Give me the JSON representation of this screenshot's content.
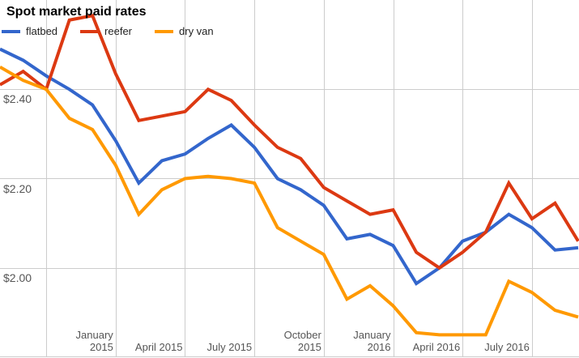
{
  "chart_data": {
    "type": "line",
    "title": "Spot market paid rates",
    "xlabel": "",
    "ylabel": "",
    "background": "#ffffff",
    "gridline_color": "#cccccc",
    "grid": true,
    "legend_position": "top-left",
    "ylim": [
      1.8,
      2.6
    ],
    "x": [
      "Aug 2014",
      "Sep 2014",
      "Oct 2014",
      "Nov 2014",
      "Dec 2014",
      "Jan 2015",
      "Feb 2015",
      "Mar 2015",
      "Apr 2015",
      "May 2015",
      "Jun 2015",
      "Jul 2015",
      "Aug 2015",
      "Sep 2015",
      "Oct 2015",
      "Nov 2015",
      "Dec 2015",
      "Jan 2016",
      "Feb 2016",
      "Mar 2016",
      "Apr 2016",
      "May 2016",
      "Jun 2016",
      "Jul 2016",
      "Aug 2016",
      "Sep 2016"
    ],
    "series": [
      {
        "name": "flatbed",
        "color": "#3366CC",
        "values": [
          2.49,
          2.465,
          2.43,
          2.4,
          2.365,
          2.285,
          2.19,
          2.24,
          2.255,
          2.29,
          2.32,
          2.27,
          2.2,
          2.175,
          2.14,
          2.065,
          2.075,
          2.05,
          1.965,
          2.0,
          2.06,
          2.08,
          2.12,
          2.09,
          2.04,
          2.045
        ]
      },
      {
        "name": "reefer",
        "color": "#DC3912",
        "values": [
          2.41,
          2.44,
          2.4,
          2.555,
          2.565,
          2.435,
          2.33,
          2.34,
          2.35,
          2.4,
          2.375,
          2.32,
          2.27,
          2.245,
          2.18,
          2.15,
          2.12,
          2.13,
          2.035,
          2.0,
          2.035,
          2.08,
          2.19,
          2.11,
          2.145,
          2.06
        ]
      },
      {
        "name": "dry van",
        "color": "#FF9900",
        "values": [
          2.45,
          2.42,
          2.4,
          2.335,
          2.31,
          2.23,
          2.12,
          2.175,
          2.2,
          2.205,
          2.2,
          2.19,
          2.09,
          2.06,
          2.03,
          1.93,
          1.96,
          1.915,
          1.855,
          1.85,
          1.85,
          1.85,
          1.97,
          1.945,
          1.905,
          1.89
        ]
      }
    ],
    "y_ticks": [
      {
        "label": "$2.40",
        "value": 2.4
      },
      {
        "label": "$2.20",
        "value": 2.2
      },
      {
        "label": "$2.00",
        "value": 2.0
      }
    ],
    "baseline_value": 1.8,
    "x_ticks": [
      {
        "index": 5,
        "lines": [
          "January",
          "2015"
        ]
      },
      {
        "index": 8,
        "lines": [
          "April 2015"
        ]
      },
      {
        "index": 11,
        "lines": [
          "July 2015"
        ]
      },
      {
        "index": 14,
        "lines": [
          "October",
          "2015"
        ]
      },
      {
        "index": 17,
        "lines": [
          "January",
          "2016"
        ]
      },
      {
        "index": 20,
        "lines": [
          "April 2016"
        ]
      },
      {
        "index": 23,
        "lines": [
          "July 2016"
        ]
      }
    ],
    "grid_month_indices": [
      2,
      5,
      8,
      11,
      14,
      17,
      20,
      23
    ]
  }
}
